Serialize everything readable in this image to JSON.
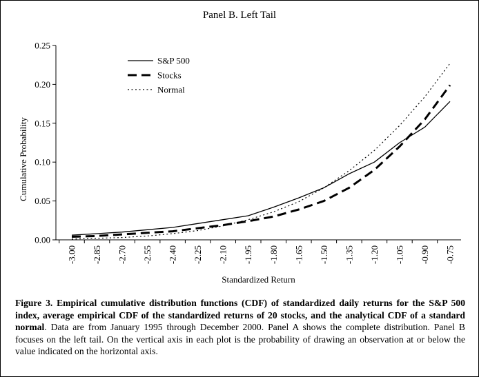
{
  "chart_data": {
    "type": "line",
    "title": "Panel B. Left Tail",
    "xlabel": "Standardized Return",
    "ylabel": "Cumulative Probability",
    "x": [
      -3.0,
      -2.85,
      -2.7,
      -2.55,
      -2.4,
      -2.25,
      -2.1,
      -1.95,
      -1.8,
      -1.65,
      -1.5,
      -1.35,
      -1.2,
      -1.05,
      -0.9,
      -0.75
    ],
    "xtick_labels": [
      "-3.00",
      "-2.85",
      "-2.70",
      "-2.55",
      "-2.40",
      "-2.25",
      "-2.10",
      "-1.95",
      "-1.80",
      "-1.65",
      "-1.50",
      "-1.35",
      "-1.20",
      "-1.05",
      "-0.90",
      "-0.75"
    ],
    "yticks": [
      0.0,
      0.05,
      0.1,
      0.15,
      0.2,
      0.25
    ],
    "ytick_labels": [
      "0.00",
      "0.05",
      "0.10",
      "0.15",
      "0.20",
      "0.25"
    ],
    "ylim": [
      0,
      0.25
    ],
    "grid": false,
    "legend_position": "top-left",
    "series": [
      {
        "name": "S&P 500",
        "style": "solid",
        "values": [
          0.006,
          0.008,
          0.01,
          0.013,
          0.016,
          0.021,
          0.026,
          0.031,
          0.042,
          0.054,
          0.067,
          0.085,
          0.1,
          0.125,
          0.145,
          0.178
        ]
      },
      {
        "name": "Stocks",
        "style": "dashed",
        "values": [
          0.004,
          0.005,
          0.007,
          0.009,
          0.011,
          0.015,
          0.019,
          0.024,
          0.03,
          0.039,
          0.05,
          0.067,
          0.09,
          0.12,
          0.155,
          0.199
        ]
      },
      {
        "name": "Normal",
        "style": "dotted",
        "values": [
          0.001,
          0.002,
          0.003,
          0.005,
          0.008,
          0.012,
          0.018,
          0.026,
          0.036,
          0.049,
          0.067,
          0.089,
          0.115,
          0.147,
          0.184,
          0.227
        ]
      }
    ]
  },
  "caption": {
    "bold": "Figure 3. Empirical cumulative distribution functions (CDF) of standardized daily returns for the S&P 500 index, average empirical CDF of the standardized returns of 20 stocks, and the analytical CDF of a standard normal",
    "normal": ". Data are from January 1995 through December 2000. Panel A shows the complete distribution. Panel B focuses on the left tail. On the vertical axis in each plot is the probability of drawing an observation at or below the value indicated on the horizontal axis."
  }
}
